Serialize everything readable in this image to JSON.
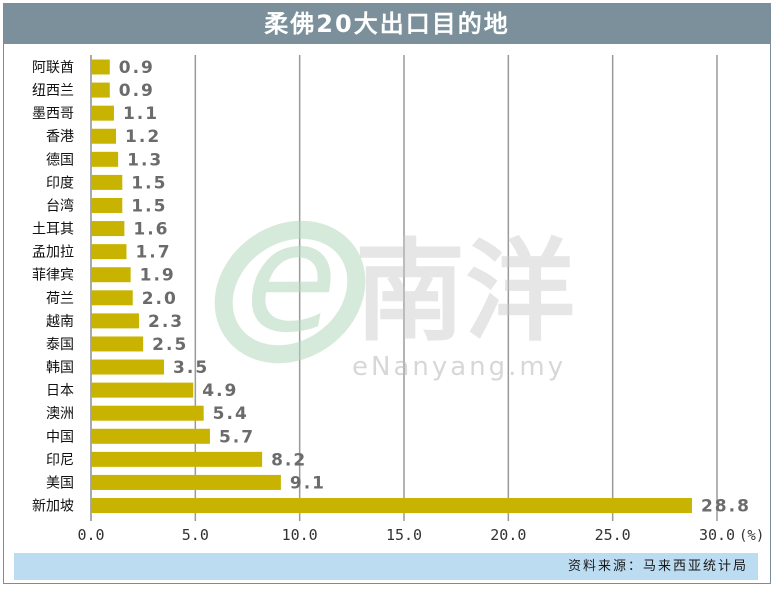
{
  "colors": {
    "bar": "#c8b400",
    "title_bg": "#7b909b",
    "source_bg": "#bcdcf2",
    "grid": "#9a9a9a",
    "value_label": "#6b6b6b",
    "watermark": "#b4d8be"
  },
  "header": {
    "title": "柔佛20大出口目的地"
  },
  "watermark": {
    "logo_letter": "e",
    "logo_text": "南洋",
    "site": "eNanyang.my"
  },
  "source": {
    "text": "资料来源：马来西亚统计局"
  },
  "chart_data": {
    "type": "bar",
    "orientation": "horizontal",
    "title": "柔佛20大出口目的地",
    "categories": [
      "阿联酋",
      "纽西兰",
      "墨西哥",
      "香港",
      "德国",
      "印度",
      "台湾",
      "土耳其",
      "孟加拉",
      "菲律宾",
      "荷兰",
      "越南",
      "泰国",
      "韩国",
      "日本",
      "澳洲",
      "中国",
      "印尼",
      "美国",
      "新加坡"
    ],
    "values": [
      0.9,
      0.9,
      1.1,
      1.2,
      1.3,
      1.5,
      1.5,
      1.6,
      1.7,
      1.9,
      2.0,
      2.3,
      2.5,
      3.5,
      4.9,
      5.4,
      5.7,
      8.2,
      9.1,
      28.8
    ],
    "value_labels": [
      "0.9",
      "0.9",
      "1.1",
      "1.2",
      "1.3",
      "1.5",
      "1.5",
      "1.6",
      "1.7",
      "1.9",
      "2.0",
      "2.3",
      "2.5",
      "3.5",
      "4.9",
      "5.4",
      "5.7",
      "8.2",
      "9.1",
      "28.8"
    ],
    "xlim": [
      0,
      30
    ],
    "x_ticks": [
      0,
      5,
      10,
      15,
      20,
      25,
      30
    ],
    "x_tick_labels": [
      "0.0",
      "5.0",
      "10.0",
      "15.0",
      "20.0",
      "25.0",
      "30.0"
    ],
    "unit_label": "(%)",
    "grid": true,
    "legend": "none"
  }
}
